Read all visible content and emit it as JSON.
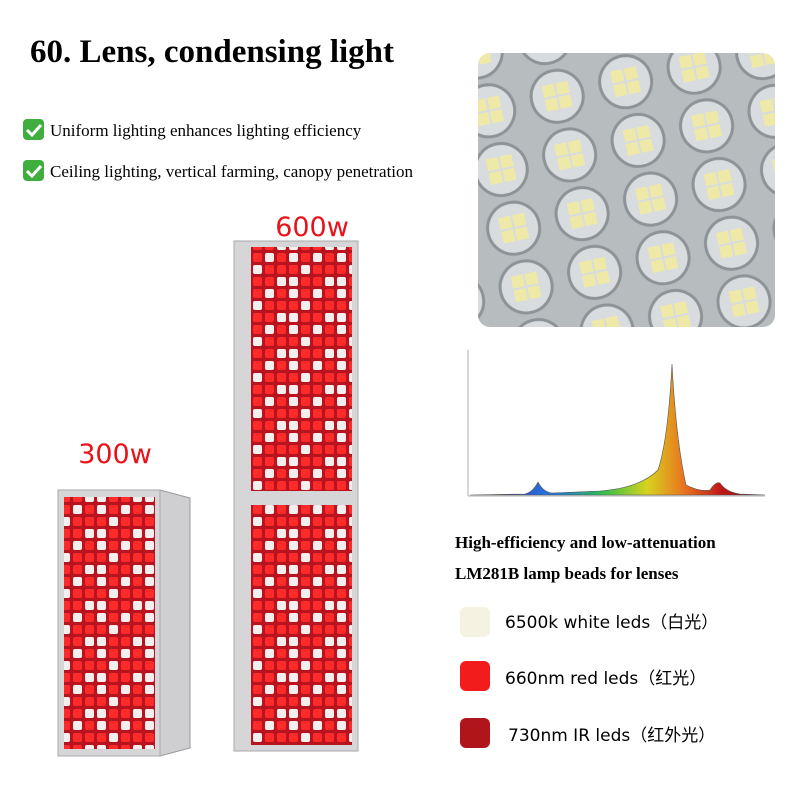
{
  "header": {
    "title": "60. Lens, condensing light"
  },
  "features": [
    "Uniform lighting enhances lighting efficiency",
    "Ceiling lighting, vertical farming, canopy penetration"
  ],
  "products": [
    {
      "label": "600w"
    },
    {
      "label": "300w"
    }
  ],
  "description": {
    "lines": [
      "High-efficiency and low-attenuation",
      "LM281B lamp beads for lenses"
    ]
  },
  "legend": [
    {
      "label": "6500k white leds（白光）",
      "color": "#f6f2e2"
    },
    {
      "label": "660nm red leds（红光）",
      "color": "#f21c1c"
    },
    {
      "label": "730nm IR leds（红外光）",
      "color": "#b0151b"
    }
  ]
}
